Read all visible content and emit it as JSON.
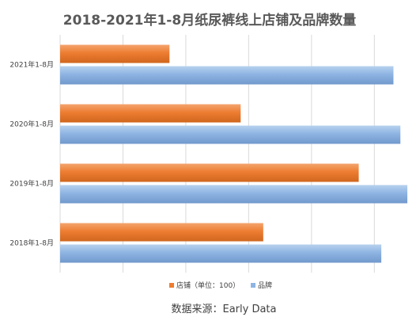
{
  "chart_data": {
    "type": "bar",
    "orientation": "horizontal",
    "title": "2018-2021年1-8月纸尿裤线上店铺及品牌数量",
    "categories": [
      "2021年1-8月",
      "2020年1-8月",
      "2019年1-8月",
      "2018年1-8月"
    ],
    "series": [
      {
        "name": "店铺（单位：100）",
        "color": "#ED7D31",
        "values": [
          63,
          104,
          172,
          117
        ]
      },
      {
        "name": "品牌",
        "color": "#8EB4E3",
        "values": [
          192,
          196,
          200,
          185
        ]
      }
    ],
    "xlim": [
      0,
      200
    ],
    "grid": true,
    "legend_position": "bottom"
  },
  "footer": {
    "source": "数据来源：Early Data"
  }
}
